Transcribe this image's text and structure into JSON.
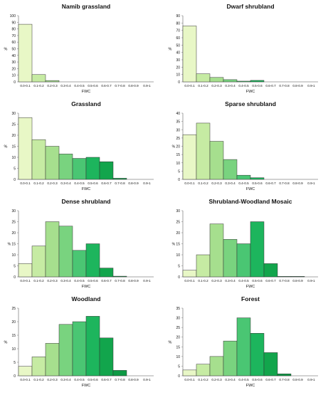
{
  "chart_data": [
    {
      "type": "bar",
      "title": "Namib grassland",
      "xlabel": "FWC",
      "ylabel": "%",
      "categories": [
        "0.0-0.1",
        "0.1-0.2",
        "0.2-0.3",
        "0.3-0.4",
        "0.4-0.5",
        "0.5-0.6",
        "0.6-0.7",
        "0.7-0.8",
        "0.8-0.9",
        "0.9-1"
      ],
      "values": [
        87,
        11,
        2,
        0,
        0,
        0,
        0,
        0,
        0,
        0
      ],
      "ylim": [
        0,
        100
      ],
      "yticks": [
        0,
        10,
        20,
        30,
        40,
        50,
        60,
        70,
        80,
        90,
        100
      ],
      "ytick_labels": [
        "0",
        "10",
        "20",
        "30",
        "40",
        "50",
        "60",
        "70",
        "80",
        "90",
        "100"
      ]
    },
    {
      "type": "bar",
      "title": "Dwarf shrubland",
      "xlabel": "FWC",
      "ylabel": "%",
      "categories": [
        "0.0-0.1",
        "0.1-0.2",
        "0.2-0.3",
        "0.3-0.4",
        "0.4-0.5",
        "0.5-0.6",
        "0.6-0.7",
        "0.7-0.8",
        "0.8-0.9",
        "0.9-1"
      ],
      "values": [
        76,
        11,
        6,
        3,
        1,
        2,
        0,
        0,
        0,
        0
      ],
      "ylim": [
        0,
        90
      ],
      "yticks": [
        0,
        10,
        20,
        30,
        40,
        50,
        60,
        70,
        80,
        90
      ],
      "ytick_labels": [
        "0",
        "10",
        "20",
        "30",
        "40",
        "50",
        "60",
        "70",
        "80",
        "90"
      ]
    },
    {
      "type": "bar",
      "title": "Grassland",
      "xlabel": "FWC",
      "ylabel": "%",
      "categories": [
        "0.0-0.1",
        "0.1-0.2",
        "0.2-0.3",
        "0.3-0.4",
        "0.4-0.5",
        "0.5-0.6",
        "0.6-0.7",
        "0.7-0.8",
        "0.8-0.9",
        "0.9-1"
      ],
      "values": [
        28,
        18,
        15,
        11.5,
        9.5,
        10,
        8,
        0.5,
        0,
        0
      ],
      "ylim": [
        0,
        30
      ],
      "yticks": [
        0,
        5,
        10,
        15,
        20,
        25,
        30
      ],
      "ytick_labels": [
        "0",
        "5",
        "10",
        "15",
        "20",
        "25",
        "30"
      ]
    },
    {
      "type": "bar",
      "title": "Sparse shrubland",
      "xlabel": "FWC",
      "ylabel": "%",
      "categories": [
        "0.0-0.1",
        "0.1-0.2",
        "0.2-0.3",
        "0.3-0.4",
        "0.4-0.5",
        "0.5-0.6",
        "0.6-0.7",
        "0.7-0.8",
        "0.8-0.9",
        "0.9-1"
      ],
      "values": [
        27,
        34,
        23,
        12,
        2.5,
        1,
        0,
        0,
        0,
        0
      ],
      "ylim": [
        0,
        40
      ],
      "yticks": [
        0,
        5,
        10,
        15,
        20,
        25,
        30,
        35,
        40
      ],
      "ytick_labels": [
        "0",
        "5",
        "10",
        "15",
        "% 20",
        "25",
        "30",
        "35",
        "40"
      ]
    },
    {
      "type": "bar",
      "title": "Dense shrubland",
      "xlabel": "FWC",
      "ylabel": "%",
      "categories": [
        "0.0-0.1",
        "0.1-0.2",
        "0.2-0.3",
        "0.3-0.4",
        "0.4-0.5",
        "0.5-0.6",
        "0.6-0.7",
        "0.7-0.8",
        "0.8-0.9",
        "0.9-1"
      ],
      "values": [
        6,
        14,
        25,
        23,
        12,
        15,
        4,
        0.3,
        0,
        0
      ],
      "ylim": [
        0,
        30
      ],
      "yticks": [
        0,
        5,
        10,
        15,
        20,
        25,
        30
      ],
      "ytick_labels": [
        "0",
        "5",
        "10",
        "% 15",
        "20",
        "25",
        "30"
      ]
    },
    {
      "type": "bar",
      "title": "Shrubland-Woodland Mosaic",
      "xlabel": "FWC",
      "ylabel": "%",
      "categories": [
        "0.0-0.1",
        "0.1-0.2",
        "0.2-0.3",
        "0.3-0.4",
        "0.4-0.5",
        "0.5-0.6",
        "0.6-0.7",
        "0.7-0.8",
        "0.8-0.9",
        "0.9-1"
      ],
      "values": [
        3,
        10,
        24,
        17,
        15,
        25,
        6,
        0.2,
        0.2,
        0
      ],
      "ylim": [
        0,
        30
      ],
      "yticks": [
        0,
        5,
        10,
        15,
        20,
        25,
        30
      ],
      "ytick_labels": [
        "0",
        "5",
        "10",
        "% 15",
        "20",
        "25",
        "30"
      ]
    },
    {
      "type": "bar",
      "title": "Woodland",
      "xlabel": "FWC",
      "ylabel": "%",
      "categories": [
        "0.0-0.1",
        "0.1-0.2",
        "0.2-0.3",
        "0.3-0.4",
        "0.4-0.5",
        "0.5-0.6",
        "0.6-0.7",
        "0.7-0.8",
        "0.8-0.9",
        "0.9-1"
      ],
      "values": [
        3.5,
        7,
        12,
        19,
        20,
        22,
        14,
        2,
        0,
        0
      ],
      "ylim": [
        0,
        25
      ],
      "yticks": [
        0,
        5,
        10,
        15,
        20,
        25
      ],
      "ytick_labels": [
        "0",
        "5",
        "10",
        "15",
        "20",
        "25"
      ]
    },
    {
      "type": "bar",
      "title": "Forest",
      "xlabel": "FWC",
      "ylabel": "%",
      "categories": [
        "0.0-0.1",
        "0.1-0.2",
        "0.2-0.3",
        "0.3-0.4",
        "0.4-0.5",
        "0.5-0.6",
        "0.6-0.7",
        "0.7-0.8",
        "0.8-0.9",
        "0.9-1"
      ],
      "values": [
        3,
        6,
        10,
        18,
        30,
        22,
        12,
        1,
        0,
        0
      ],
      "ylim": [
        0,
        35
      ],
      "yticks": [
        0,
        5,
        10,
        15,
        20,
        25,
        30,
        35
      ],
      "ytick_labels": [
        "0",
        "5",
        "10",
        "15",
        "20",
        "25",
        "30",
        "35"
      ]
    }
  ],
  "colors": {
    "bins": [
      "#e8f7c6",
      "#c6eba3",
      "#a6df8e",
      "#79d37f",
      "#4ac673",
      "#1db55d",
      "#12a54c",
      "#0e9a45",
      "#0c8e3f",
      "#0a8339"
    ],
    "bar_edge": "#333333",
    "axis": "#888888",
    "text": "#111111"
  }
}
